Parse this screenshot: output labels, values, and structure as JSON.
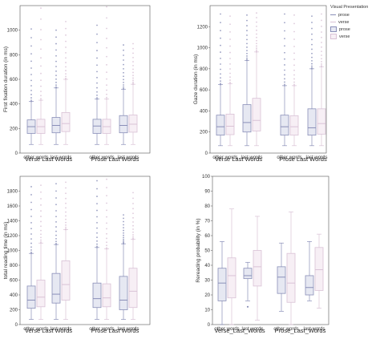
{
  "colors": {
    "prose": "#8a8fb8",
    "verse": "#d9c2d6",
    "frame": "#555555"
  },
  "legend": {
    "title": "Visual Presentation",
    "entries": [
      "prose",
      "verse",
      "prose",
      "verse"
    ]
  },
  "chart_data": [
    {
      "type": "box",
      "ylabel": "First fixation duration (in ms)",
      "ylim": [
        0,
        1200
      ],
      "yticks": [
        0,
        200,
        400,
        600,
        800,
        1000
      ],
      "xticks": [
        "other words",
        "last words",
        "other words",
        "last words"
      ],
      "groups": [
        "Verse Last Words",
        "Prose Last Words"
      ],
      "series": [
        {
          "name": "prose",
          "boxes": [
            {
              "q1": 160,
              "med": 215,
              "q3": 270,
              "wlo": 70,
              "whi": 420,
              "fmax": 1010
            },
            {
              "q1": 165,
              "med": 225,
              "q3": 290,
              "wlo": 70,
              "whi": 530,
              "fmax": 1000
            },
            {
              "q1": 160,
              "med": 220,
              "q3": 275,
              "wlo": 70,
              "whi": 440,
              "fmax": 1040
            },
            {
              "q1": 165,
              "med": 225,
              "q3": 305,
              "wlo": 70,
              "whi": 520,
              "fmax": 880
            }
          ]
        },
        {
          "name": "verse",
          "boxes": [
            {
              "q1": 160,
              "med": 215,
              "q3": 275,
              "wlo": 70,
              "whi": 430,
              "fmax": 1180
            },
            {
              "q1": 175,
              "med": 240,
              "q3": 330,
              "wlo": 70,
              "whi": 600,
              "fmax": 1070
            },
            {
              "q1": 160,
              "med": 215,
              "q3": 275,
              "wlo": 70,
              "whi": 440,
              "fmax": 1190
            },
            {
              "q1": 170,
              "med": 235,
              "q3": 310,
              "wlo": 70,
              "whi": 560,
              "fmax": 890
            }
          ]
        }
      ]
    },
    {
      "type": "box",
      "ylabel": "Gaze duration (in ms)",
      "ylim": [
        0,
        1400
      ],
      "yticks": [
        0,
        200,
        400,
        600,
        800,
        1000,
        1200
      ],
      "xticks": [
        "other words",
        "last words",
        "other words",
        "last words"
      ],
      "groups": [
        "Verse Last Words",
        "Prose Last Words"
      ],
      "series": [
        {
          "name": "prose",
          "boxes": [
            {
              "q1": 170,
              "med": 250,
              "q3": 360,
              "wlo": 70,
              "whi": 650,
              "fmax": 1320
            },
            {
              "q1": 200,
              "med": 290,
              "q3": 460,
              "wlo": 70,
              "whi": 880,
              "fmax": 1310
            },
            {
              "q1": 170,
              "med": 250,
              "q3": 360,
              "wlo": 70,
              "whi": 640,
              "fmax": 1320
            },
            {
              "q1": 170,
              "med": 240,
              "q3": 420,
              "wlo": 70,
              "whi": 800,
              "fmax": 1300
            }
          ]
        },
        {
          "name": "verse",
          "boxes": [
            {
              "q1": 175,
              "med": 255,
              "q3": 370,
              "wlo": 70,
              "whi": 660,
              "fmax": 1300
            },
            {
              "q1": 210,
              "med": 310,
              "q3": 520,
              "wlo": 70,
              "whi": 960,
              "fmax": 1330
            },
            {
              "q1": 170,
              "med": 250,
              "q3": 355,
              "wlo": 70,
              "whi": 640,
              "fmax": 1310
            },
            {
              "q1": 180,
              "med": 280,
              "q3": 420,
              "wlo": 70,
              "whi": 820,
              "fmax": 1320
            }
          ]
        }
      ]
    },
    {
      "type": "box",
      "ylabel": "total reading time (in ms)",
      "ylim": [
        0,
        2000
      ],
      "yticks": [
        0,
        200,
        400,
        600,
        800,
        1000,
        1200,
        1400,
        1600,
        1800
      ],
      "xticks": [
        "other words",
        "last words",
        "other words",
        "last words"
      ],
      "groups": [
        "Verse Last Words",
        "Prose Last Words"
      ],
      "series": [
        {
          "name": "prose",
          "boxes": [
            {
              "q1": 220,
              "med": 330,
              "q3": 520,
              "wlo": 70,
              "whi": 960,
              "fmax": 1860
            },
            {
              "q1": 290,
              "med": 410,
              "q3": 690,
              "wlo": 70,
              "whi": 1080,
              "fmax": 1900
            },
            {
              "q1": 230,
              "med": 350,
              "q3": 560,
              "wlo": 70,
              "whi": 1040,
              "fmax": 1940
            },
            {
              "q1": 200,
              "med": 330,
              "q3": 650,
              "wlo": 70,
              "whi": 1090,
              "fmax": 1480
            }
          ]
        },
        {
          "name": "verse",
          "boxes": [
            {
              "q1": 240,
              "med": 370,
              "q3": 600,
              "wlo": 70,
              "whi": 1100,
              "fmax": 1880
            },
            {
              "q1": 330,
              "med": 540,
              "q3": 860,
              "wlo": 70,
              "whi": 1280,
              "fmax": 1920
            },
            {
              "q1": 240,
              "med": 360,
              "q3": 550,
              "wlo": 70,
              "whi": 1020,
              "fmax": 1960
            },
            {
              "q1": 230,
              "med": 450,
              "q3": 760,
              "wlo": 70,
              "whi": 1150,
              "fmax": 1780
            }
          ]
        }
      ]
    },
    {
      "type": "box",
      "ylabel": "Rereading probability (in %)",
      "ylim": [
        0,
        100
      ],
      "yticks": [
        0,
        10,
        20,
        30,
        40,
        50,
        60,
        70,
        80,
        90,
        100
      ],
      "xticks": [
        "other words",
        "last words",
        "other words",
        "last words"
      ],
      "groups": [
        "Verse_Last_Words",
        "Prose_Last_Words"
      ],
      "series": [
        {
          "name": "prose",
          "boxes": [
            {
              "q1": 16,
              "med": 28,
              "q3": 38,
              "wlo": 0,
              "whi": 56
            },
            {
              "q1": 31,
              "med": 33,
              "q3": 38,
              "wlo": 16,
              "whi": 42,
              "outliers": [
                12
              ]
            },
            {
              "q1": 21,
              "med": 32,
              "q3": 39,
              "wlo": 9,
              "whi": 55
            },
            {
              "q1": 20,
              "med": 25,
              "q3": 33,
              "wlo": 16,
              "whi": 56
            }
          ]
        },
        {
          "name": "verse",
          "boxes": [
            {
              "q1": 18,
              "med": 33,
              "q3": 45,
              "wlo": 0,
              "whi": 78
            },
            {
              "q1": 26,
              "med": 39,
              "q3": 50,
              "wlo": 3,
              "whi": 73
            },
            {
              "q1": 15,
              "med": 28,
              "q3": 48,
              "wlo": 0,
              "whi": 76
            },
            {
              "q1": 23,
              "med": 37,
              "q3": 52,
              "wlo": 11,
              "whi": 61
            }
          ]
        }
      ]
    }
  ]
}
